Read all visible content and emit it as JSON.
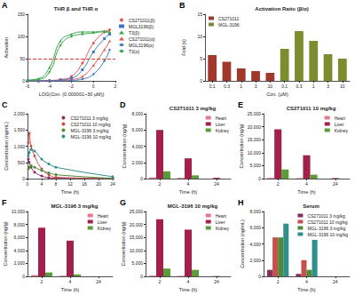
{
  "chart_data": [
    {
      "panel": "A",
      "type": "line",
      "title": "THR β and THR α",
      "x_label": "LOG(Con. (0.000001~30 μM))",
      "y_label": "Activation",
      "xlim": [
        -6,
        2
      ],
      "xticks": [
        -6,
        -4,
        -2,
        0,
        2
      ],
      "ylim": [
        0,
        150
      ],
      "yticks": [
        0,
        50,
        100,
        150
      ],
      "grid": false,
      "legend": "right",
      "reference_line": 50,
      "series": [
        {
          "name": "CS271011(β)",
          "color": "#e8544e",
          "marker": "circle",
          "x": [
            -6,
            -5,
            -4,
            -3,
            -2,
            -1,
            0,
            1,
            1.48
          ],
          "values": [
            0,
            0,
            1,
            3,
            10,
            40,
            85,
            110,
            115
          ]
        },
        {
          "name": "MGL3196(β)",
          "color": "#3a78c2",
          "marker": "rect",
          "x": [
            -6,
            -5,
            -4,
            -3,
            -2,
            -1,
            0,
            1,
            1.48
          ],
          "values": [
            0,
            0,
            0,
            2,
            6,
            25,
            65,
            95,
            105
          ]
        },
        {
          "name": "T3(β)",
          "color": "#3aa64a",
          "marker": "triangle",
          "x": [
            -6,
            -5,
            -4,
            -3,
            -2,
            -1,
            0,
            1,
            1.48
          ],
          "values": [
            2,
            5,
            30,
            90,
            105,
            110,
            110,
            112,
            110
          ]
        },
        {
          "name": "CS271011(α)",
          "color": "#e8544e",
          "marker": "triangle",
          "x": [
            -6,
            -5,
            -4,
            -3,
            -2,
            -1,
            0,
            1,
            1.48
          ],
          "values": [
            0,
            0,
            0,
            1,
            3,
            10,
            35,
            70,
            90
          ]
        },
        {
          "name": "MGL3196(α)",
          "color": "#3a78c2",
          "marker": "diamond",
          "x": [
            -6,
            -5,
            -4,
            -3,
            -2,
            -1,
            0,
            1,
            1.48
          ],
          "values": [
            0,
            0,
            0,
            0,
            1,
            4,
            15,
            45,
            70
          ]
        },
        {
          "name": "T3(α)",
          "color": "#3aa64a",
          "marker": "diamond",
          "x": [
            -6,
            -5,
            -4,
            -3,
            -2,
            -1,
            0,
            1,
            1.48
          ],
          "values": [
            1,
            3,
            20,
            80,
            100,
            105,
            108,
            110,
            108
          ]
        }
      ]
    },
    {
      "panel": "B",
      "type": "bar",
      "title": "Activation Ratio (β/α)",
      "x_label": "Con. (μM)",
      "y_label": "Fold (x)",
      "categories": [
        "0.1",
        "0.3",
        "1",
        "3",
        "10",
        "0.1",
        "0.3",
        "1",
        "3",
        "10"
      ],
      "ylim": [
        0,
        15
      ],
      "yticks": [
        0,
        5,
        10,
        15
      ],
      "grid": false,
      "legend": "upper left",
      "series": [
        {
          "name": "CS271011",
          "color": "#a0392c",
          "values": [
            5.8,
            4.3,
            2.8,
            2.2,
            1.8,
            null,
            null,
            null,
            null,
            null
          ]
        },
        {
          "name": "MGL-3196",
          "color": "#7d8c2e",
          "values": [
            null,
            null,
            null,
            null,
            null,
            7.2,
            11.2,
            9.0,
            6.0,
            5.0
          ]
        }
      ]
    },
    {
      "panel": "C",
      "type": "line",
      "x_label": "Time (h)",
      "y_label": "Concentration (ng/mL)",
      "xlim": [
        0,
        24
      ],
      "xticks": [
        0,
        4,
        8,
        12,
        16,
        20,
        24
      ],
      "ylim": [
        0,
        2000
      ],
      "yticks": [
        0,
        500,
        1000,
        1500,
        2000
      ],
      "grid": false,
      "legend": "upper right",
      "series": [
        {
          "name": "CS271011 3 mg/kg",
          "color": "#8a2c5e",
          "marker": "circle",
          "x": [
            0.25,
            0.5,
            1,
            2,
            4,
            6,
            8,
            24
          ],
          "values": [
            600,
            500,
            350,
            200,
            80,
            30,
            10,
            0
          ]
        },
        {
          "name": "CS271011 10 mg/kg",
          "color": "#c8504c",
          "marker": "circle",
          "x": [
            0.25,
            0.5,
            1,
            2,
            4,
            6,
            8,
            24
          ],
          "values": [
            1100,
            1400,
            1000,
            700,
            300,
            120,
            40,
            5
          ]
        },
        {
          "name": "MGL-3196 3 mg/kg",
          "color": "#4e8a3a",
          "marker": "circle",
          "x": [
            0.25,
            0.5,
            1,
            2,
            4,
            6,
            8,
            24
          ],
          "values": [
            300,
            350,
            400,
            350,
            250,
            180,
            120,
            10
          ]
        },
        {
          "name": "MGL-3196 10 mg/kg",
          "color": "#2f8f8a",
          "marker": "circle",
          "x": [
            0.25,
            0.5,
            1,
            2,
            4,
            6,
            8,
            24
          ],
          "values": [
            700,
            800,
            900,
            850,
            600,
            450,
            350,
            60
          ]
        }
      ]
    },
    {
      "panel": "D",
      "type": "bar",
      "title": "CS271011 3 mg/kg",
      "x_label": "Time (h)",
      "y_label": "Concentration (ng/g)",
      "categories": [
        "2",
        "4",
        "24"
      ],
      "ylim": [
        0,
        8000
      ],
      "yticks": [
        0,
        2000,
        4000,
        6000,
        8000
      ],
      "grid": false,
      "legend": "upper right",
      "series": [
        {
          "name": "Heart",
          "color": "#e07a8f",
          "values": [
            150,
            100,
            0
          ]
        },
        {
          "name": "Liver",
          "color": "#a3204a",
          "values": [
            6000,
            2500,
            100
          ]
        },
        {
          "name": "Kidney",
          "color": "#5a9b3a",
          "values": [
            900,
            400,
            0
          ]
        }
      ]
    },
    {
      "panel": "E",
      "type": "bar",
      "title": "CS271011 10 mg/kg",
      "x_label": "Time (h)",
      "y_label": "Concentration (ng/g)",
      "categories": [
        "2",
        "4",
        "24"
      ],
      "ylim": [
        0,
        25000
      ],
      "yticks": [
        0,
        5000,
        10000,
        15000,
        20000,
        25000
      ],
      "grid": false,
      "legend": "upper right",
      "series": [
        {
          "name": "Heart",
          "color": "#e07a8f",
          "values": [
            300,
            200,
            0
          ]
        },
        {
          "name": "Liver",
          "color": "#a3204a",
          "values": [
            19000,
            9000,
            200
          ]
        },
        {
          "name": "Kidney",
          "color": "#5a9b3a",
          "values": [
            3500,
            1500,
            0
          ]
        }
      ]
    },
    {
      "panel": "F",
      "type": "bar",
      "title": "MGL-3196 3 mg/kg",
      "x_label": "Time (h)",
      "y_label": "Concentration (ng/g)",
      "categories": [
        "2",
        "4",
        "24"
      ],
      "ylim": [
        0,
        10000
      ],
      "yticks": [
        0,
        2000,
        4000,
        6000,
        8000,
        10000
      ],
      "grid": false,
      "legend": "upper right",
      "series": [
        {
          "name": "Heart",
          "color": "#e07a8f",
          "values": [
            200,
            100,
            0
          ]
        },
        {
          "name": "Liver",
          "color": "#a3204a",
          "values": [
            7500,
            5500,
            0
          ]
        },
        {
          "name": "Kidney",
          "color": "#5a9b3a",
          "values": [
            600,
            300,
            0
          ]
        }
      ]
    },
    {
      "panel": "G",
      "type": "bar",
      "title": "MGL-3196 10 mg/kg",
      "x_label": "Time (h)",
      "y_label": "Concentration (ng/g)",
      "categories": [
        "2",
        "4",
        "24"
      ],
      "ylim": [
        0,
        25000
      ],
      "yticks": [
        0,
        5000,
        10000,
        15000,
        20000,
        25000
      ],
      "grid": false,
      "legend": "upper right",
      "series": [
        {
          "name": "Heart",
          "color": "#e07a8f",
          "values": [
            300,
            200,
            0
          ]
        },
        {
          "name": "Liver",
          "color": "#a3204a",
          "values": [
            22000,
            18000,
            100
          ]
        },
        {
          "name": "Kidney",
          "color": "#5a9b3a",
          "values": [
            3000,
            2500,
            0
          ]
        }
      ]
    },
    {
      "panel": "H",
      "type": "bar",
      "title": "Serum",
      "x_label": "Time (h)",
      "y_label": "Concentration (ng/mL)",
      "categories": [
        "2",
        "4",
        "24"
      ],
      "ylim": [
        0,
        8000
      ],
      "yticks": [
        0,
        2000,
        4000,
        6000,
        8000
      ],
      "grid": false,
      "legend": "upper right",
      "series": [
        {
          "name": "CS271011 3 mg/kg",
          "color": "#8a2c5e",
          "values": [
            800,
            300,
            0
          ]
        },
        {
          "name": "CS271011 10 mg/kg",
          "color": "#c8504c",
          "values": [
            4800,
            2000,
            0
          ]
        },
        {
          "name": "MGL-3196 3 mg/kg",
          "color": "#4e8a3a",
          "values": [
            4800,
            800,
            0
          ]
        },
        {
          "name": "MGL-3196 10 mg/kg",
          "color": "#2f8f8a",
          "values": [
            6500,
            4500,
            0
          ]
        }
      ]
    }
  ]
}
